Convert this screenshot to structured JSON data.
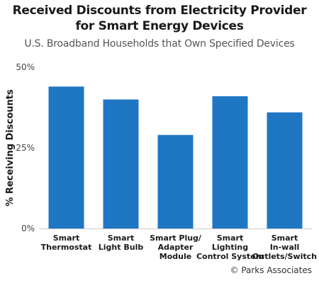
{
  "chart_data": {
    "type": "bar",
    "title_line1": "Received Discounts from Electricity Provider",
    "title_line2": "for Smart Energy Devices",
    "subtitle": "U.S. Broadband Households that Own Specified Devices",
    "ylabel": "% Receiving Discounts",
    "xlabel": "",
    "ylim": [
      0,
      50
    ],
    "yticks": [
      {
        "value": 0,
        "label": "0%"
      },
      {
        "value": 25,
        "label": "25%"
      },
      {
        "value": 50,
        "label": "50%"
      }
    ],
    "grid": false,
    "categories": [
      [
        "Smart",
        "Thermostat"
      ],
      [
        "Smart",
        "Light Bulb"
      ],
      [
        "Smart Plug/",
        "Adapter",
        "Module"
      ],
      [
        "Smart",
        "Lighting",
        "Control System"
      ],
      [
        "Smart",
        "In-wall",
        "Outlets/Switch"
      ]
    ],
    "values": [
      44,
      40,
      29,
      41,
      36
    ],
    "bar_color": "#1f77c4"
  },
  "footer": {
    "source": "© Parks Associates"
  }
}
